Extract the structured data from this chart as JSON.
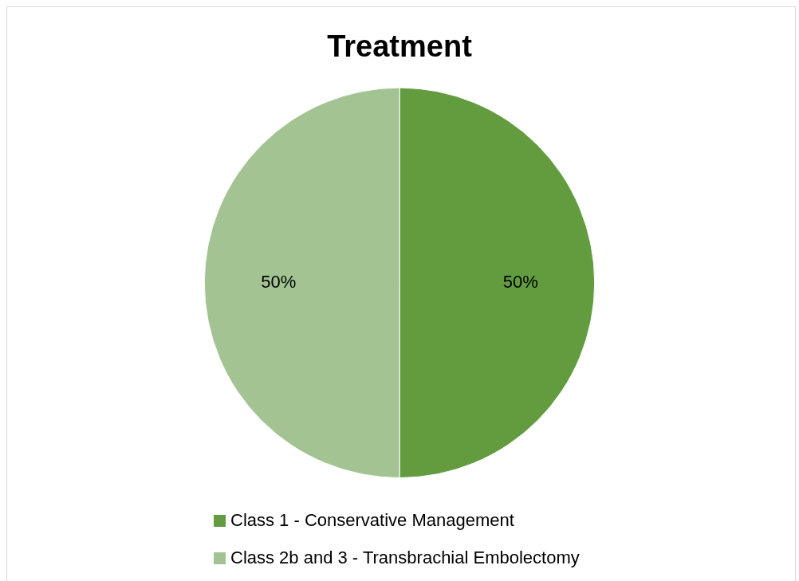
{
  "chart_data": {
    "type": "pie",
    "title": "Treatment",
    "categories": [
      "Class 1 - Conservative Management",
      "Class 2b and 3 - Transbrachial Embolectomy"
    ],
    "values": [
      50,
      50
    ],
    "colors": [
      "#629c3f",
      "#a3c492"
    ],
    "value_labels": [
      "50%",
      "50%"
    ],
    "legend": "bottom"
  }
}
